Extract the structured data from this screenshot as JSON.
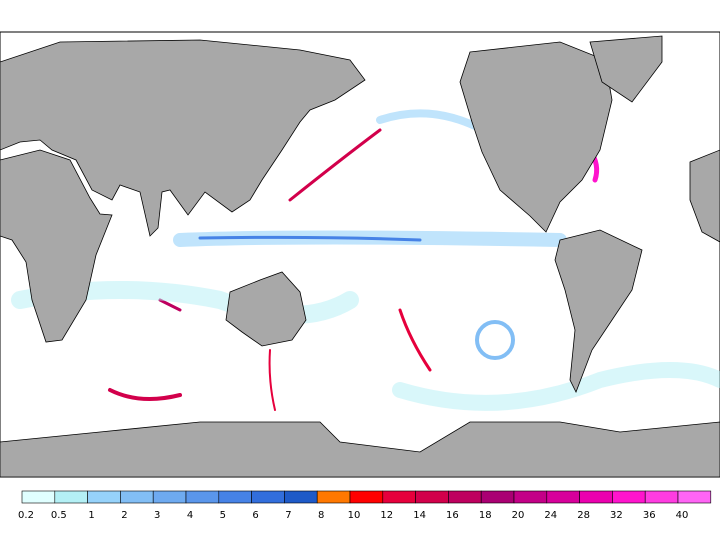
{
  "legend": {
    "levels": [
      0.2,
      0.5,
      1,
      2,
      3,
      4,
      5,
      6,
      7,
      8,
      10,
      12,
      14,
      16,
      18,
      20,
      24,
      28,
      32,
      36,
      40
    ],
    "colors": [
      "#e0ffff",
      "#b4f0f5",
      "#96d2fa",
      "#82bef5",
      "#6eaaf0",
      "#5a96eb",
      "#4682e6",
      "#326edc",
      "#1e5ac8",
      "#ff7800",
      "#ff0000",
      "#e6003c",
      "#d2004b",
      "#be005f",
      "#aa0073",
      "#c30087",
      "#d7009b",
      "#eb00af",
      "#ff14cd",
      "#ff3ce1",
      "#ff64f5"
    ]
  }
}
